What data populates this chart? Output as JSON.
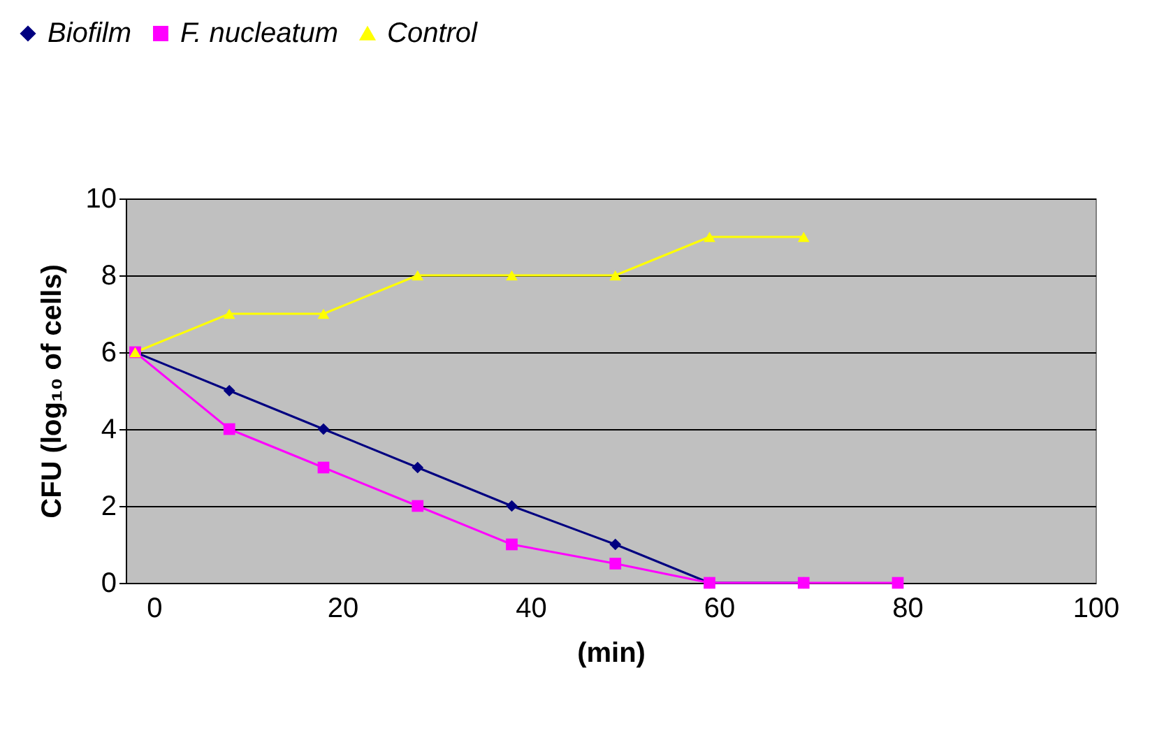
{
  "chart_data": {
    "type": "line",
    "xlabel": "(min)",
    "ylabel": "CFU (log₁₀ of cells)",
    "x": [
      -2,
      8,
      18,
      28,
      38,
      49,
      59,
      69,
      79
    ],
    "series": [
      {
        "name": "Biofilm",
        "color": "#000080",
        "marker": "diamond",
        "values": [
          6,
          5,
          4,
          3,
          2,
          1,
          0,
          0,
          null
        ]
      },
      {
        "name": "F. nucleatum",
        "color": "#ff00ff",
        "marker": "square",
        "values": [
          6,
          4,
          3,
          2,
          1,
          0.5,
          0,
          0,
          0
        ]
      },
      {
        "name": "Control",
        "color": "#ffff00",
        "marker": "triangle",
        "values": [
          6,
          7,
          7,
          8,
          8,
          8,
          9,
          9,
          null
        ]
      }
    ],
    "xlim": [
      -3,
      100
    ],
    "xticks": [
      0,
      20,
      40,
      60,
      80,
      100
    ],
    "ylim": [
      0,
      10
    ],
    "yticks": [
      0,
      2,
      4,
      6,
      8,
      10
    ],
    "grid": "y",
    "legend": "top left"
  }
}
